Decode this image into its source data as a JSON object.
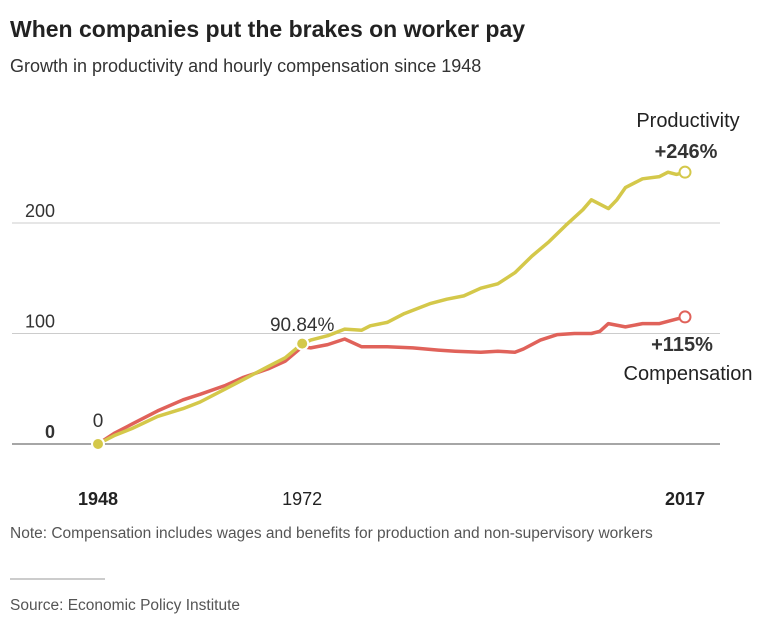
{
  "title": "When companies put the brakes on worker pay",
  "subtitle": "Growth in productivity and hourly compensation since 1948",
  "note": "Note: Compensation includes wages and benefits for production and non-supervisory workers",
  "source": "Source: Economic Policy Institute",
  "chart_data": {
    "type": "line",
    "xlim": [
      1948,
      2017
    ],
    "ylim": [
      0,
      250
    ],
    "yticks": [
      0,
      100,
      200
    ],
    "ytick_labels": [
      "0",
      "100",
      "200"
    ],
    "xtick_labels": [
      {
        "year": 1948,
        "label": "1948",
        "bold": true
      },
      {
        "year": 1972,
        "label": "1972",
        "bold": false
      },
      {
        "year": 2017,
        "label": "2017",
        "bold": true
      }
    ],
    "grid": true,
    "annotations": {
      "start": "0",
      "divergence": "90.84%"
    },
    "series": [
      {
        "name": "Productivity",
        "end_label": "+246%",
        "color": "#d4c84a",
        "x": [
          1948,
          1950,
          1952,
          1955,
          1958,
          1960,
          1963,
          1965,
          1968,
          1970,
          1972,
          1973,
          1975,
          1977,
          1979,
          1980,
          1982,
          1984,
          1987,
          1989,
          1991,
          1993,
          1995,
          1997,
          1999,
          2001,
          2003,
          2005,
          2006,
          2007,
          2008,
          2009,
          2010,
          2012,
          2014,
          2015,
          2016,
          2017
        ],
        "y": [
          0,
          8,
          14,
          25,
          32,
          38,
          50,
          58,
          70,
          78,
          90.84,
          94,
          98,
          104,
          103,
          107,
          110,
          118,
          127,
          131,
          134,
          141,
          145,
          155,
          170,
          183,
          198,
          212,
          221,
          217,
          213,
          221,
          232,
          240,
          242,
          246,
          244,
          246
        ]
      },
      {
        "name": "Compensation",
        "end_label": "+115%",
        "color": "#e0625a",
        "x": [
          1948,
          1950,
          1952,
          1955,
          1958,
          1960,
          1963,
          1965,
          1968,
          1970,
          1972,
          1973,
          1975,
          1977,
          1979,
          1980,
          1982,
          1985,
          1988,
          1990,
          1993,
          1995,
          1997,
          1998,
          2000,
          2002,
          2004,
          2006,
          2007,
          2008,
          2010,
          2012,
          2014,
          2016,
          2017
        ],
        "y": [
          0,
          10,
          18,
          30,
          40,
          45,
          53,
          60,
          68,
          75,
          88,
          87,
          90,
          95,
          88,
          88,
          88,
          87,
          85,
          84,
          83,
          84,
          83,
          86,
          94,
          99,
          100,
          100,
          102,
          109,
          106,
          109,
          109,
          113,
          115
        ]
      }
    ]
  }
}
